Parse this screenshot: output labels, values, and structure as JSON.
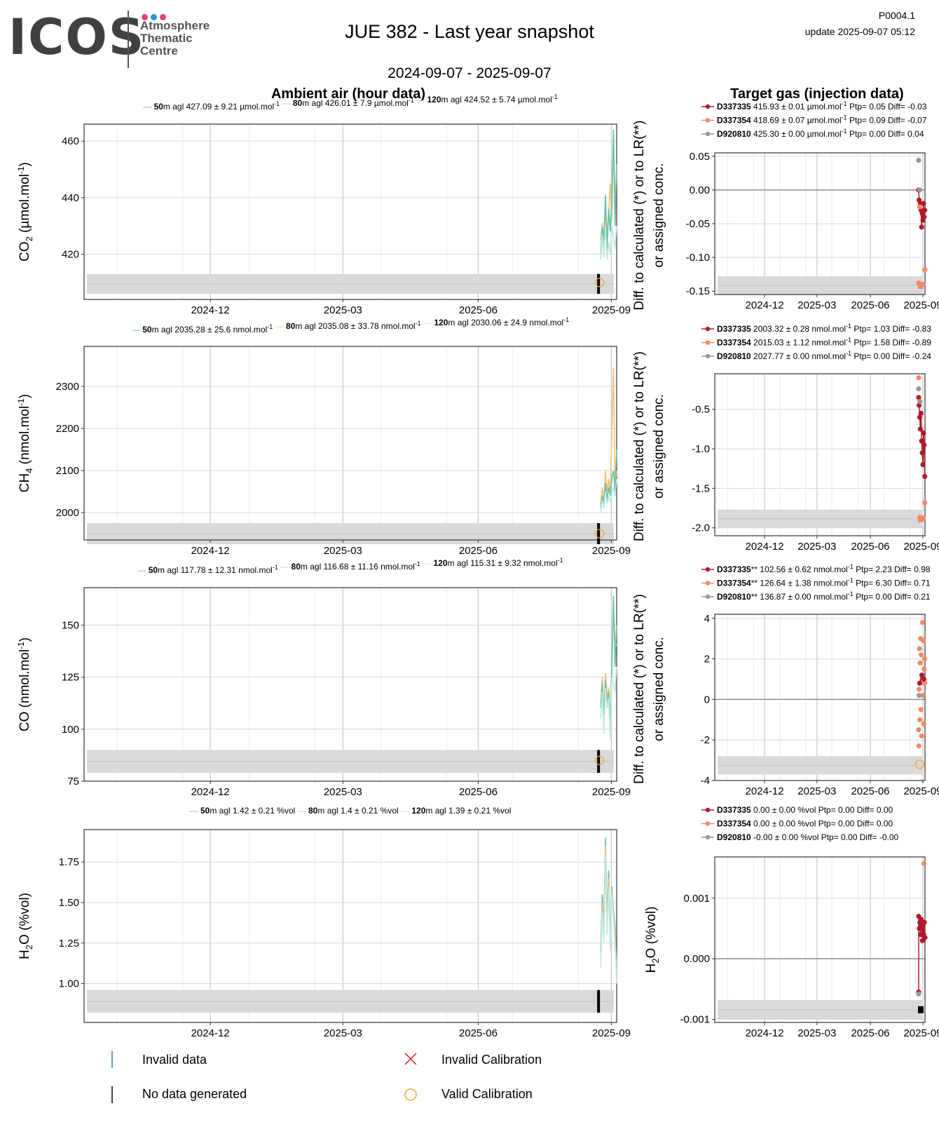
{
  "header": {
    "logo_word": "ICOS",
    "logo_line1": "Atmosphere",
    "logo_line2": "Thematic",
    "logo_line3": "Centre",
    "title": "JUE 382 - Last year snapshot",
    "code": "P0004.1",
    "update": "update  2025-09-07 05:12",
    "date_range": "2024-09-07 - 2025-09-07"
  },
  "colors": {
    "s50": "#66c2a5",
    "s80": "#f0c27a",
    "s120": "#bfe8e4",
    "tg1": "#b2182b",
    "tg2": "#ef8a62",
    "tg3": "#999999",
    "band": "#d9d9d9",
    "valid_cal": "#f5a623",
    "invalid_cal": "#e41a1c",
    "invalid_data": "#377eb8"
  },
  "columns": {
    "ambient": "Ambient air (hour data)",
    "target": "Target gas (injection data)"
  },
  "diff_ylabel": {
    "line1": "Diff. to calculated (*) or to LR(**)",
    "line2": "or assigned conc."
  },
  "x_ticks": [
    "2024-12",
    "2025-03",
    "2025-06",
    "2025-09"
  ],
  "legend": {
    "invalid_data": "Invalid data",
    "no_data": "No data generated",
    "invalid_cal": "Invalid Calibration",
    "valid_cal": "Valid Calibration"
  },
  "chart_data": [
    {
      "type": "line",
      "panel": "ambient-co2",
      "ylabel": "CO2 (µmol.mol-1)",
      "ylabel_main": "CO",
      "ylabel_sub": "2",
      "ylabel_rest": " (µmol.mol",
      "ylabel_sup": "-1",
      "ylabel_end": ")",
      "ylim": [
        404,
        466
      ],
      "yticks": [
        "460",
        "440",
        "420"
      ],
      "ytick_values": [
        460,
        440,
        420
      ],
      "band": [
        406,
        413
      ],
      "valid_cal_point": [
        0.968,
        410
      ],
      "legend": [
        {
          "bold": "50",
          "text": "m agl 427.09 ± 9.21 µmol.mol",
          "sup": "-1",
          "color": "s50"
        },
        {
          "bold": "80",
          "text": "m agl 426.01 ± 7.9 µmol.mol",
          "sup": "-1",
          "color": "s80"
        },
        {
          "bold": "120",
          "text": "m agl 424.52 ± 5.74 µmol.mol",
          "sup": "-1",
          "color": "s120"
        }
      ],
      "series": [
        {
          "color": "s80",
          "x": [
            0.97,
            0.973,
            0.976,
            0.979,
            0.982,
            0.985,
            0.988,
            0.991,
            0.994,
            0.997,
            1.0
          ],
          "y": [
            425,
            431,
            420,
            438,
            428,
            434,
            445,
            432,
            460,
            440,
            448
          ]
        },
        {
          "color": "s50",
          "x": [
            0.97,
            0.973,
            0.976,
            0.979,
            0.982,
            0.985,
            0.988,
            0.991,
            0.994,
            0.997,
            1.0
          ],
          "y": [
            420,
            430,
            425,
            441,
            421,
            436,
            428,
            440,
            464,
            430,
            452
          ]
        },
        {
          "color": "s120",
          "x": [
            0.97,
            0.973,
            0.976,
            0.979,
            0.982,
            0.985,
            0.988,
            0.991,
            0.994,
            0.997,
            1.0
          ],
          "y": [
            418,
            427,
            419,
            430,
            418,
            424,
            420,
            430,
            426,
            422,
            430
          ]
        }
      ]
    },
    {
      "type": "line",
      "panel": "ambient-ch4",
      "ylabel": "CH4 (nmol.mol-1)",
      "ylabel_main": "CH",
      "ylabel_sub": "4",
      "ylabel_rest": " (nmol.mol",
      "ylabel_sup": "-1",
      "ylabel_end": ")",
      "ylim": [
        1935,
        2395
      ],
      "yticks": [
        "2300",
        "2200",
        "2100",
        "2000"
      ],
      "ytick_values": [
        2300,
        2200,
        2100,
        2000
      ],
      "band": [
        1925,
        1975
      ],
      "valid_cal_point": [
        0.968,
        1950
      ],
      "legend": [
        {
          "bold": "50",
          "text": "m agl 2035.28 ± 25.6 nmol.mol",
          "sup": "-1",
          "color": "s50"
        },
        {
          "bold": "80",
          "text": "m agl 2035.08 ± 33.78 nmol.mol",
          "sup": "-1",
          "color": "s80"
        },
        {
          "bold": "120",
          "text": "m agl 2030.06 ± 24.9 nmol.mol",
          "sup": "-1",
          "color": "s120"
        }
      ],
      "series": [
        {
          "color": "s80",
          "x": [
            0.97,
            0.973,
            0.976,
            0.979,
            0.982,
            0.985,
            0.988,
            0.991,
            0.994,
            0.997,
            1.0
          ],
          "y": [
            2020,
            2060,
            2030,
            2100,
            2050,
            2080,
            2040,
            2200,
            2345,
            2060,
            2100
          ]
        },
        {
          "color": "s50",
          "x": [
            0.97,
            0.973,
            0.976,
            0.979,
            0.982,
            0.985,
            0.988,
            0.991,
            0.994,
            0.997,
            1.0
          ],
          "y": [
            2010,
            2040,
            2020,
            2070,
            2030,
            2060,
            2040,
            2080,
            2100,
            2050,
            2150
          ]
        },
        {
          "color": "s120",
          "x": [
            0.97,
            0.973,
            0.976,
            0.979,
            0.982,
            0.985,
            0.988,
            0.991,
            0.994,
            0.997,
            1.0
          ],
          "y": [
            2000,
            2030,
            2010,
            2050,
            2020,
            2040,
            2025,
            2050,
            2060,
            2040,
            2080
          ]
        }
      ]
    },
    {
      "type": "line",
      "panel": "ambient-co",
      "ylabel": "CO (nmol.mol-1)",
      "ylabel_main": "CO",
      "ylabel_sub": "",
      "ylabel_rest": " (nmol.mol",
      "ylabel_sup": "-1",
      "ylabel_end": ")",
      "ylim": [
        75,
        168
      ],
      "yticks": [
        "150",
        "125",
        "100",
        "75"
      ],
      "ytick_values": [
        150,
        125,
        100,
        75
      ],
      "band": [
        79,
        90
      ],
      "valid_cal_point": [
        0.968,
        85
      ],
      "legend": [
        {
          "bold": "50",
          "text": "m agl 117.78 ± 12.31 nmol.mol",
          "sup": "-1",
          "color": "s50"
        },
        {
          "bold": "80",
          "text": "m agl 116.68 ± 11.16 nmol.mol",
          "sup": "-1",
          "color": "s80"
        },
        {
          "bold": "120",
          "text": "m agl 115.31 ± 9.32 nmol.mol",
          "sup": "-1",
          "color": "s120"
        }
      ],
      "series": [
        {
          "color": "s80",
          "x": [
            0.97,
            0.973,
            0.976,
            0.979,
            0.982,
            0.985,
            0.988,
            0.991,
            0.994,
            0.997,
            1.0
          ],
          "y": [
            112,
            125,
            108,
            127,
            115,
            120,
            104,
            132,
            158,
            143,
            140
          ]
        },
        {
          "color": "s50",
          "x": [
            0.97,
            0.973,
            0.976,
            0.979,
            0.982,
            0.985,
            0.988,
            0.991,
            0.994,
            0.997,
            1.0
          ],
          "y": [
            110,
            122,
            106,
            124,
            112,
            118,
            102,
            130,
            164,
            130,
            150
          ]
        },
        {
          "color": "s120",
          "x": [
            0.97,
            0.973,
            0.976,
            0.979,
            0.982,
            0.985,
            0.988,
            0.991,
            0.994,
            0.997,
            1.0
          ],
          "y": [
            105,
            118,
            98,
            120,
            110,
            115,
            95,
            125,
            122,
            118,
            130
          ]
        }
      ]
    },
    {
      "type": "line",
      "panel": "ambient-h2o",
      "ylabel": "H2O (%vol)",
      "ylabel_main": "H",
      "ylabel_sub": "2",
      "ylabel_rest": "O (%vol)",
      "ylabel_sup": "",
      "ylabel_end": "",
      "ylim": [
        0.76,
        1.95
      ],
      "yticks": [
        "1.75",
        "1.50",
        "1.25",
        "1.00"
      ],
      "ytick_values": [
        1.75,
        1.5,
        1.25,
        1.0
      ],
      "band": [
        0.82,
        0.96
      ],
      "valid_cal_point": null,
      "legend": [
        {
          "bold": "50",
          "text": "m agl 1.42 ± 0.21 %vol",
          "sup": "",
          "color": "s50"
        },
        {
          "bold": "80",
          "text": "m agl 1.4 ± 0.21 %vol",
          "sup": "",
          "color": "s80"
        },
        {
          "bold": "120",
          "text": "m agl 1.39 ± 0.21 %vol",
          "sup": "",
          "color": "s120"
        }
      ],
      "series": [
        {
          "color": "s50",
          "x": [
            0.97,
            0.973,
            0.976,
            0.979,
            0.982,
            0.985,
            0.988,
            0.991,
            0.994,
            0.997,
            1.0
          ],
          "y": [
            1.2,
            1.55,
            1.35,
            1.9,
            1.4,
            1.7,
            1.25,
            1.6,
            1.45,
            1.35,
            1.1
          ]
        },
        {
          "color": "s80",
          "x": [
            0.97,
            0.973,
            0.976,
            0.979,
            0.982,
            0.985,
            0.988,
            0.991,
            0.994,
            0.997,
            1.0
          ],
          "y": [
            1.15,
            1.5,
            1.3,
            1.85,
            1.35,
            1.65,
            1.22,
            1.58,
            1.42,
            1.3,
            1.05
          ]
        },
        {
          "color": "s120",
          "x": [
            0.97,
            0.973,
            0.976,
            0.979,
            0.982,
            0.985,
            0.988,
            0.991,
            0.994,
            0.997,
            1.0
          ],
          "y": [
            1.1,
            1.45,
            1.25,
            1.8,
            1.3,
            1.6,
            1.2,
            1.55,
            1.4,
            1.25,
            1.0
          ]
        }
      ]
    },
    {
      "type": "scatter",
      "panel": "target-co2",
      "ylim": [
        -0.155,
        0.055
      ],
      "yticks": [
        "0.05",
        "0.00",
        "-0.05",
        "-0.10",
        "-0.15"
      ],
      "ytick_values": [
        0.05,
        0.0,
        -0.05,
        -0.1,
        -0.15
      ],
      "band": [
        -0.155,
        -0.128
      ],
      "legend": [
        {
          "bold": "D337335",
          "text": " 415.93 ± 0.01 µmol.mol",
          "sup": "-1",
          "tail": " Ptp= 0.05 Diff= -0.03",
          "color": "tg1"
        },
        {
          "bold": "D337354",
          "text": " 418.69 ± 0.07 µmol.mol",
          "sup": "-1",
          "tail": " Ptp= 0.09 Diff= -0.07",
          "color": "tg2"
        },
        {
          "bold": "D920810",
          "text": " 425.30 ± 0.00 µmol.mol",
          "sup": "-1",
          "tail": " Ptp= 0.00 Diff= 0.04",
          "color": "tg3"
        }
      ],
      "series": [
        {
          "color": "tg1",
          "x": [
            0.97,
            0.972,
            0.975,
            0.978,
            0.981,
            0.984,
            0.987,
            0.99,
            0.993,
            0.996,
            0.999
          ],
          "y": [
            0.0,
            -0.015,
            -0.025,
            -0.02,
            -0.03,
            -0.055,
            -0.035,
            -0.045,
            -0.02,
            -0.04,
            -0.03
          ]
        },
        {
          "color": "tg2",
          "x": [
            0.97,
            0.975,
            0.99,
            0.999
          ],
          "y": [
            -0.138,
            -0.025,
            -0.14,
            -0.118
          ]
        },
        {
          "color": "tg3",
          "x": [
            0.97,
            0.975
          ],
          "y": [
            0.044,
            0.0
          ]
        }
      ]
    },
    {
      "type": "scatter",
      "panel": "target-ch4",
      "ylim": [
        -2.1,
        -0.05
      ],
      "yticks": [
        "-0.5",
        "-1.0",
        "-1.5",
        "-2.0"
      ],
      "ytick_values": [
        -0.5,
        -1.0,
        -1.5,
        -2.0
      ],
      "band": [
        -2.0,
        -1.77
      ],
      "legend": [
        {
          "bold": "D337335",
          "text": " 2003.32 ± 0.28 nmol.mol",
          "sup": "-1",
          "tail": " Ptp= 1.03 Diff= -0.83",
          "color": "tg1"
        },
        {
          "bold": "D337354",
          "text": " 2015.03 ± 1.12 nmol.mol",
          "sup": "-1",
          "tail": " Ptp= 1.58 Diff= -0.89",
          "color": "tg2"
        },
        {
          "bold": "D920810",
          "text": " 2027.77 ± 0.00 nmol.mol",
          "sup": "-1",
          "tail": " Ptp= 0.00 Diff= -0.24",
          "color": "tg3"
        }
      ],
      "series": [
        {
          "color": "tg1",
          "x": [
            0.97,
            0.972,
            0.975,
            0.978,
            0.981,
            0.984,
            0.987,
            0.99,
            0.993,
            0.996,
            0.999
          ],
          "y": [
            -0.35,
            -0.45,
            -0.6,
            -0.75,
            -0.55,
            -0.9,
            -1.05,
            -1.2,
            -0.8,
            -0.95,
            -1.35
          ]
        },
        {
          "color": "tg2",
          "x": [
            0.97,
            0.975,
            0.99,
            0.999
          ],
          "y": [
            -0.1,
            -1.87,
            -1.88,
            -1.68
          ]
        },
        {
          "color": "tg3",
          "x": [
            0.97,
            0.975
          ],
          "y": [
            -0.24,
            -0.4
          ]
        }
      ]
    },
    {
      "type": "scatter",
      "panel": "target-co",
      "ylim": [
        -4.0,
        4.2
      ],
      "yticks": [
        "4",
        "2",
        "0",
        "-2",
        "-4"
      ],
      "ytick_values": [
        4,
        2,
        0,
        -2,
        -4
      ],
      "band": [
        -3.7,
        -2.8
      ],
      "valid_cal_point": [
        0.975,
        -3.2
      ],
      "legend": [
        {
          "bold": "D337335",
          "text": "** 102.56 ± 0.62 nmol.mol",
          "sup": "-1",
          "tail": " Ptp= 2.23 Diff= 0.98",
          "color": "tg1"
        },
        {
          "bold": "D337354",
          "text": "** 126.64 ± 1.38 nmol.mol",
          "sup": "-1",
          "tail": " Ptp= 6.30 Diff= 0.71",
          "color": "tg2"
        },
        {
          "bold": "D920810",
          "text": "** 136.87 ± 0.00 nmol.mol",
          "sup": "-1",
          "tail": " Ptp= 0.00 Diff= 0.21",
          "color": "tg3"
        }
      ],
      "series": [
        {
          "color": "tg2",
          "x": [
            0.97,
            0.971,
            0.972,
            0.974,
            0.976,
            0.977,
            0.979,
            0.981,
            0.982,
            0.984,
            0.986,
            0.988,
            0.99,
            0.992,
            0.994,
            0.996,
            0.998,
            0.999
          ],
          "y": [
            -1.5,
            -2.3,
            0.5,
            2.5,
            -1,
            1.8,
            3.0,
            -0.5,
            2.2,
            -1.8,
            1.0,
            3.8,
            0.2,
            2.9,
            -1.2,
            1.5,
            2.0,
            0.8
          ]
        },
        {
          "color": "tg1",
          "x": [
            0.975,
            0.985,
            0.995
          ],
          "y": [
            0.8,
            1.2,
            1.0
          ]
        },
        {
          "color": "tg3",
          "x": [
            0.972
          ],
          "y": [
            0.2
          ]
        }
      ]
    },
    {
      "type": "scatter",
      "panel": "target-h2o",
      "ylabel": "H2O (%vol)",
      "ylabel_main": "H",
      "ylabel_sub": "2",
      "ylabel_rest": "O (%vol)",
      "ylabel_sup": "",
      "ylabel_end": "",
      "ylim": [
        -0.00105,
        0.00168
      ],
      "yticks": [
        "0.001",
        "0.000",
        "-0.001"
      ],
      "ytick_values": [
        0.001,
        0.0,
        -0.001
      ],
      "band": [
        -0.001,
        -0.00068
      ],
      "legend": [
        {
          "bold": "D337335",
          "text": " 0.00 ± 0.00 %vol Ptp= 0.00 Diff= 0.00",
          "sup": "",
          "tail": "",
          "color": "tg1"
        },
        {
          "bold": "D337354",
          "text": " 0.00 ± 0.00 %vol Ptp= 0.00 Diff= 0.00",
          "sup": "",
          "tail": "",
          "color": "tg2"
        },
        {
          "bold": "D920810",
          "text": " -0.00 ± 0.00 %vol Ptp= 0.00 Diff= -0.00",
          "sup": "",
          "tail": "",
          "color": "tg3"
        }
      ],
      "series": [
        {
          "color": "tg1",
          "x": [
            0.97,
            0.97,
            0.973,
            0.976,
            0.979,
            0.982,
            0.985,
            0.988,
            0.991,
            0.994,
            0.997,
            1.0
          ],
          "y": [
            -0.00055,
            0.0007,
            0.0005,
            0.0006,
            0.0004,
            0.00065,
            0.0005,
            0.0003,
            0.00055,
            0.0004,
            0.0006,
            0.00035
          ]
        },
        {
          "color": "tg2",
          "x": [
            0.995
          ],
          "y": [
            0.00157
          ]
        },
        {
          "color": "tg3",
          "x": [
            0.97
          ],
          "y": [
            -0.00058
          ]
        }
      ]
    }
  ]
}
